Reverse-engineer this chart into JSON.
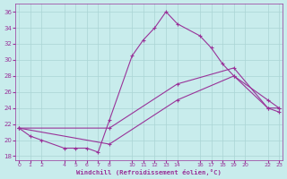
{
  "xlabel": "Windchill (Refroidissement éolien,°C)",
  "bg_color": "#c8ecec",
  "grid_color": "#aad4d4",
  "line_color": "#993399",
  "ylim": [
    17.5,
    37.0
  ],
  "xlim": [
    -0.3,
    23.3
  ],
  "yticks": [
    18,
    20,
    22,
    24,
    26,
    28,
    30,
    32,
    34,
    36
  ],
  "xtick_positions": [
    0,
    1,
    2,
    4,
    5,
    6,
    7,
    8,
    10,
    11,
    12,
    13,
    14,
    16,
    17,
    18,
    19,
    20,
    22,
    23
  ],
  "xtick_labels": [
    "0",
    "1",
    "2",
    "4",
    "5",
    "6",
    "7",
    "8",
    "10",
    "11",
    "12",
    "13",
    "14",
    "16",
    "17",
    "18",
    "19",
    "20",
    "22",
    "23"
  ],
  "curve1_x": [
    0,
    1,
    2,
    4,
    5,
    6,
    7,
    8,
    10,
    11,
    12,
    13,
    14,
    16,
    17,
    18,
    19,
    22,
    23
  ],
  "curve1_y": [
    21.5,
    20.5,
    20.0,
    19.0,
    19.0,
    19.0,
    18.5,
    22.5,
    30.5,
    32.5,
    34.0,
    36.0,
    34.5,
    33.0,
    31.5,
    29.5,
    28.0,
    25.0,
    24.0
  ],
  "curve2_x": [
    0,
    8,
    14,
    19,
    22,
    23
  ],
  "curve2_y": [
    21.5,
    21.5,
    27.0,
    29.0,
    24.0,
    24.0
  ],
  "curve3_x": [
    0,
    8,
    14,
    19,
    22,
    23
  ],
  "curve3_y": [
    21.5,
    19.5,
    25.0,
    28.0,
    24.0,
    23.5
  ]
}
